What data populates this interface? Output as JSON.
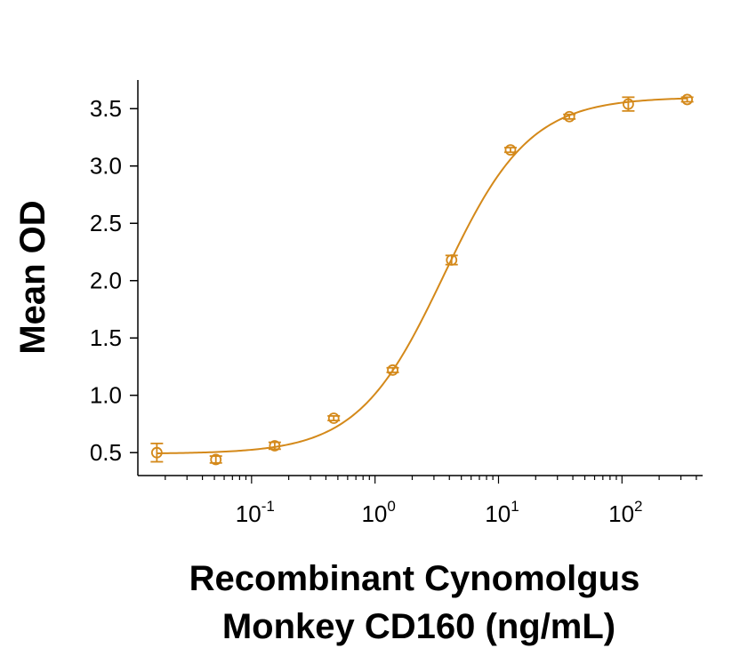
{
  "chart_data": {
    "type": "scatter",
    "xlabel_lines": [
      "Recombinant Cynomolgus",
      "Monkey CD160 (ng/mL)"
    ],
    "ylabel": "Mean OD",
    "x_scale": "log",
    "xlim": [
      0.012,
      450
    ],
    "ylim": [
      0.3,
      3.75
    ],
    "y_ticks": [
      "0.5",
      "1.0",
      "1.5",
      "2.0",
      "2.5",
      "3.0",
      "3.5"
    ],
    "x_ticks": [
      {
        "base": "10",
        "exp": "-1",
        "value": 0.1
      },
      {
        "base": "10",
        "exp": "0",
        "value": 1
      },
      {
        "base": "10",
        "exp": "1",
        "value": 10
      },
      {
        "base": "10",
        "exp": "2",
        "value": 100
      }
    ],
    "color": "#d4891a",
    "grid": false,
    "points": [
      {
        "x": 0.0171,
        "y": 0.5,
        "err": 0.08
      },
      {
        "x": 0.0514,
        "y": 0.44,
        "err": 0.03
      },
      {
        "x": 0.154,
        "y": 0.56,
        "err": 0.03
      },
      {
        "x": 0.463,
        "y": 0.8,
        "err": 0.02
      },
      {
        "x": 1.39,
        "y": 1.22,
        "err": 0.02
      },
      {
        "x": 4.17,
        "y": 2.18,
        "err": 0.04
      },
      {
        "x": 12.5,
        "y": 3.14,
        "err": 0.02
      },
      {
        "x": 37.5,
        "y": 3.43,
        "err": 0.02
      },
      {
        "x": 112.5,
        "y": 3.54,
        "err": 0.06
      },
      {
        "x": 337.5,
        "y": 3.58,
        "err": 0.02
      }
    ],
    "fit": {
      "model": "4PL",
      "bottom": 0.49,
      "top": 3.6,
      "ec50": 3.6,
      "hill": 1.25
    }
  }
}
